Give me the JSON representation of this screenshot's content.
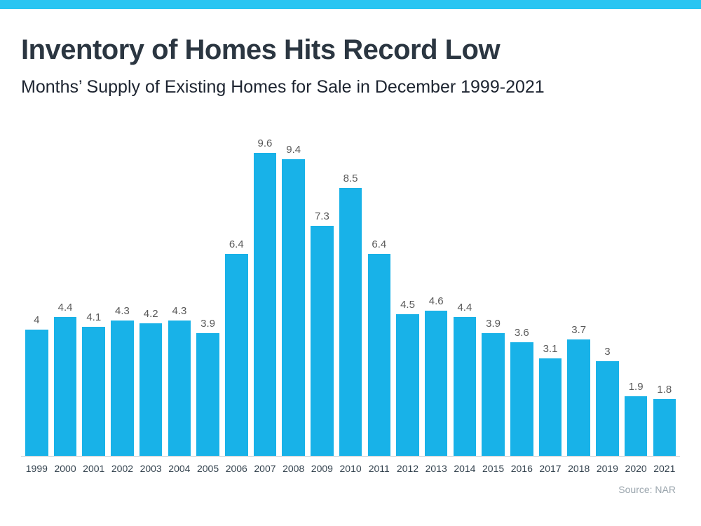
{
  "page": {
    "title": "Inventory of Homes Hits Record Low",
    "subtitle": "Months’ Supply of Existing Homes for Sale in December 1999-2021",
    "source": "Source: NAR"
  },
  "colors": {
    "accent": "#29C5F2",
    "bar": "#18B2E8",
    "title": "#2B3641",
    "value_label": "#595959",
    "year_label": "#33424E",
    "source": "#9AA5AD",
    "baseline": "#C9CDD1"
  },
  "chart_data": {
    "type": "bar",
    "title": "Inventory of Homes Hits Record Low",
    "subtitle": "Months’ Supply of Existing Homes for Sale in December 1999-2021",
    "categories": [
      "1999",
      "2000",
      "2001",
      "2002",
      "2003",
      "2004",
      "2005",
      "2006",
      "2007",
      "2008",
      "2009",
      "2010",
      "2011",
      "2012",
      "2013",
      "2014",
      "2015",
      "2016",
      "2017",
      "2018",
      "2019",
      "2020",
      "2021"
    ],
    "values": [
      4,
      4.4,
      4.1,
      4.3,
      4.2,
      4.3,
      3.9,
      6.4,
      9.6,
      9.4,
      7.3,
      8.5,
      6.4,
      4.5,
      4.6,
      4.4,
      3.9,
      3.6,
      3.1,
      3.7,
      3,
      1.9,
      1.8
    ],
    "xlabel": "",
    "ylabel": "",
    "ylim": [
      0,
      10
    ],
    "grid": false,
    "legend": false,
    "data_labels": true,
    "source": "Source: NAR"
  }
}
